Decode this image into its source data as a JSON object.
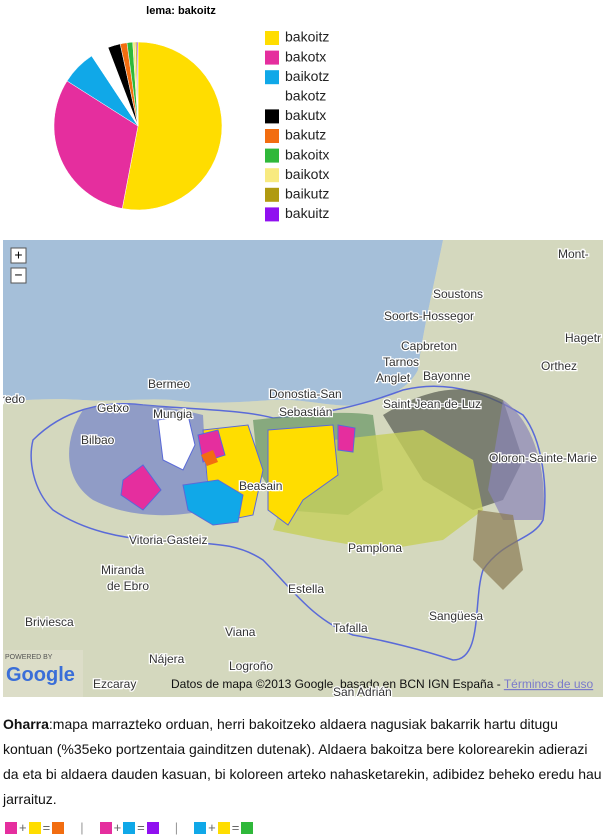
{
  "chart_data": {
    "type": "pie",
    "title": "lema: bakoitz",
    "categories": [
      "bakoitz",
      "bakotx",
      "baikotz",
      "bakotz",
      "bakutx",
      "bakutz",
      "bakoitx",
      "baikotx",
      "baikutz",
      "bakuitz"
    ],
    "colors": [
      "#ffdd00",
      "#e52e9e",
      "#10a8e8",
      "#ffffff",
      "#000000",
      "#f26d10",
      "#2fb83a",
      "#f8ea80",
      "#b09a10",
      "#9010f0"
    ],
    "values": [
      53,
      31,
      6.7,
      3.5,
      2.4,
      1.3,
      1.1,
      0.5,
      0.3,
      0.2
    ]
  },
  "map": {
    "zoom_in": "+",
    "zoom_out": "−",
    "labels": [
      "Mont-",
      "Soustons",
      "Soorts-Hossegor",
      "Capbreton",
      "Tarnos",
      "Anglet",
      "Bayonne",
      "Orthez",
      "Hagetr",
      "redo",
      "Bermeo",
      "Getxo",
      "Mungia",
      "Bilbao",
      "Donostia-San",
      "Sebastián",
      "Saint-Jean-de-Luz",
      "Oloron-Sainte-Marie",
      "Beasain",
      "Vitoria-Gasteiz",
      "Pamplona",
      "Miranda",
      "de Ebro",
      "Estella",
      "Briviesca",
      "Viana",
      "Tafalla",
      "Sangüesa",
      "Nájera",
      "Logroño",
      "Ezcaray",
      "San Adrián"
    ],
    "powered_by": "POWERED BY",
    "logo": "Google",
    "attribution": "Datos de mapa ©2013 Google, basado en BCN IGN España - ",
    "terms": "Términos de uso"
  },
  "note": {
    "title": "Oharra",
    "text": ":mapa marrazteko orduan, herri bakoitzeko aldaera nagusiak bakarrik hartu ditugu kontuan (%35eko portzentaia gainditzen dutenak). Aldaera bakoitza bere kolorearekin adierazi da eta bi aldaera dauden kasuan, bi koloreen arteko nahasketarekin, adibidez beheko eredu hau jarraituz."
  },
  "combinations": {
    "plus": "+",
    "equals": "=",
    "separator": "|"
  }
}
